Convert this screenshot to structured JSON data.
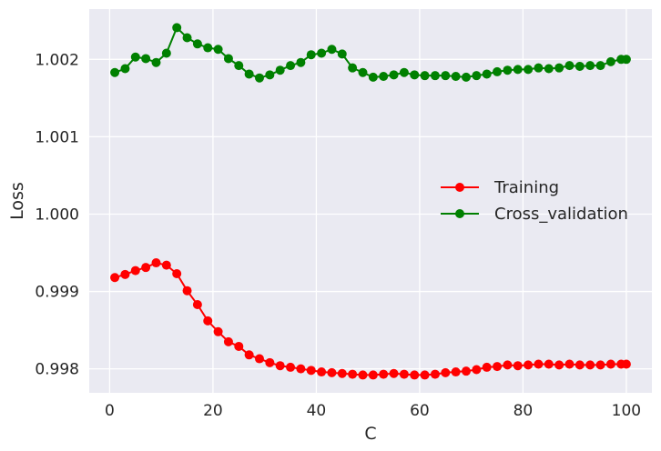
{
  "chart_data": {
    "type": "line",
    "title": "",
    "xlabel": "C",
    "ylabel": "Loss",
    "xlim": [
      -3.95,
      104.95
    ],
    "ylim": [
      0.99769,
      1.00265
    ],
    "xticks": [
      0,
      20,
      40,
      60,
      80,
      100
    ],
    "xtick_labels": [
      "0",
      "20",
      "40",
      "60",
      "80",
      "100"
    ],
    "yticks": [
      0.998,
      0.999,
      1.0,
      1.001,
      1.002
    ],
    "ytick_labels": [
      "0.998",
      "0.999",
      "1.000",
      "1.001",
      "1.002"
    ],
    "grid": true,
    "legend_position": "center-right",
    "background": "#eaeaf2",
    "x": [
      1,
      3,
      5,
      7,
      9,
      11,
      13,
      15,
      17,
      19,
      21,
      23,
      25,
      27,
      29,
      31,
      33,
      35,
      37,
      39,
      41,
      43,
      45,
      47,
      49,
      51,
      53,
      55,
      57,
      59,
      61,
      63,
      65,
      67,
      69,
      71,
      73,
      75,
      77,
      79,
      81,
      83,
      85,
      87,
      89,
      91,
      93,
      95,
      97,
      99,
      100
    ],
    "series": [
      {
        "name": "Training",
        "color": "#ff0000",
        "marker": "circle",
        "values": [
          0.99918,
          0.99922,
          0.99927,
          0.99931,
          0.99937,
          0.99934,
          0.99923,
          0.99901,
          0.99883,
          0.99862,
          0.99848,
          0.99835,
          0.99829,
          0.99818,
          0.99813,
          0.99808,
          0.99804,
          0.99802,
          0.998,
          0.99798,
          0.99796,
          0.99795,
          0.99794,
          0.99793,
          0.99792,
          0.99792,
          0.99793,
          0.99794,
          0.99793,
          0.99792,
          0.99792,
          0.99793,
          0.99795,
          0.99796,
          0.99797,
          0.99799,
          0.99802,
          0.99803,
          0.99805,
          0.99804,
          0.99805,
          0.99806,
          0.99806,
          0.99805,
          0.99806,
          0.99805,
          0.99805,
          0.99805,
          0.99806,
          0.99806,
          0.99806
        ]
      },
      {
        "name": "Cross_validation",
        "color": "#008000",
        "marker": "circle",
        "values": [
          1.00183,
          1.00188,
          1.00203,
          1.00201,
          1.00196,
          1.00208,
          1.00241,
          1.00228,
          1.0022,
          1.00215,
          1.00213,
          1.00201,
          1.00192,
          1.00181,
          1.00176,
          1.0018,
          1.00186,
          1.00192,
          1.00196,
          1.00206,
          1.00208,
          1.00213,
          1.00207,
          1.00189,
          1.00183,
          1.00177,
          1.00178,
          1.0018,
          1.00183,
          1.0018,
          1.00179,
          1.00179,
          1.00179,
          1.00178,
          1.00177,
          1.00179,
          1.00181,
          1.00184,
          1.00186,
          1.00187,
          1.00187,
          1.00189,
          1.00188,
          1.00189,
          1.00192,
          1.00191,
          1.00192,
          1.00192,
          1.00197,
          1.002,
          1.002
        ]
      }
    ]
  }
}
